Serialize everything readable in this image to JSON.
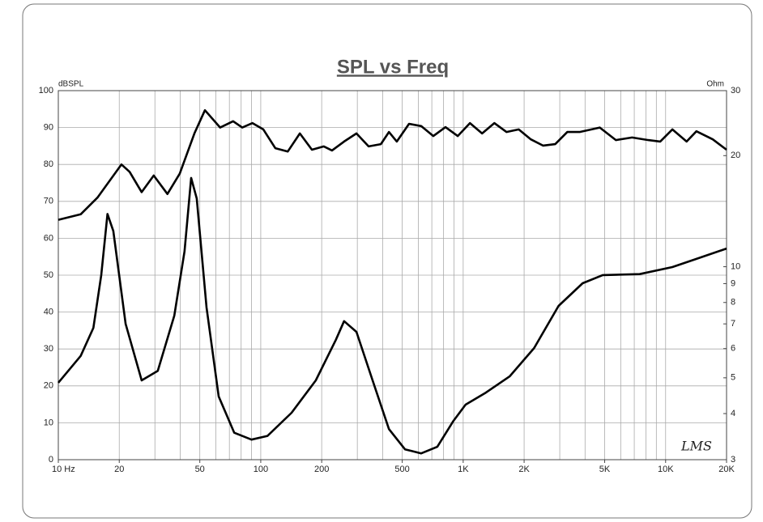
{
  "chart_data": {
    "type": "line",
    "title": "SPL vs Freq",
    "ylabel": "dBSPL",
    "y2label": "Ohm",
    "watermark": "LMS",
    "xscale": "log",
    "y2scale": "log",
    "grid": true,
    "xlim": [
      10,
      20000
    ],
    "ylim": [
      0,
      100
    ],
    "y2lim": [
      3,
      30
    ],
    "xticks": [
      {
        "value": 10,
        "label": "10  Hz"
      },
      20,
      50,
      100,
      200,
      500,
      {
        "value": 1000,
        "label": "1K"
      },
      {
        "value": 2000,
        "label": "2K"
      },
      {
        "value": 5000,
        "label": "5K"
      },
      {
        "value": 10000,
        "label": "10K"
      },
      {
        "value": 20000,
        "label": "20K"
      }
    ],
    "xgrid": [
      10,
      20,
      30,
      40,
      50,
      60,
      70,
      80,
      90,
      100,
      200,
      300,
      400,
      500,
      600,
      700,
      800,
      900,
      1000,
      2000,
      3000,
      4000,
      5000,
      6000,
      7000,
      8000,
      9000,
      10000,
      20000
    ],
    "yticks": [
      0,
      10,
      20,
      30,
      40,
      50,
      60,
      70,
      80,
      90,
      100
    ],
    "y2ticks": [
      3,
      4,
      5,
      6,
      7,
      8,
      9,
      10,
      20,
      30
    ],
    "series": [
      {
        "color": "#000000",
        "x": [
          10,
          12.9,
          15.6,
          20.5,
          22.5,
          25.8,
          29.6,
          34.6,
          39.8,
          47,
          53,
          63,
          73,
          81,
          91,
          103,
          118,
          136,
          156,
          179,
          205,
          225,
          258,
          297,
          341,
          392,
          430,
          470,
          540,
          620,
          712,
          818,
          940,
          1080,
          1240,
          1425,
          1637,
          1880,
          2160,
          2480,
          2850,
          3270,
          3760,
          4730,
          5680,
          6830,
          8210,
          9400,
          10800,
          12700,
          14200,
          17100,
          20000
        ],
        "values": [
          65,
          66.5,
          71,
          80,
          78,
          72.5,
          77,
          72,
          77.5,
          88.4,
          94.7,
          90,
          91.7,
          90,
          91.2,
          89.5,
          84.4,
          83.5,
          88.4,
          84,
          84.9,
          83.8,
          86.2,
          88.4,
          84.9,
          85.5,
          88.8,
          86.2,
          91,
          90.4,
          87.7,
          90.1,
          87.7,
          91.2,
          88.4,
          91.2,
          88.8,
          89.5,
          86.8,
          85.1,
          85.5,
          88.8,
          88.8,
          90,
          86.6,
          87.3,
          86.6,
          86.2,
          89.5,
          86.2,
          89,
          86.8,
          84
        ]
      },
      {
        "color": "#000000",
        "axis": "y2",
        "x": [
          10,
          12.9,
          14.9,
          16.3,
          17.5,
          18.7,
          21.5,
          25.8,
          31,
          37.4,
          42,
          45.3,
          48.3,
          54,
          62,
          74,
          90,
          108,
          142,
          187,
          235,
          258,
          297,
          357,
          430,
          516,
          620,
          745,
          895,
          1028,
          1295,
          1700,
          2240,
          2960,
          3890,
          4890,
          7440,
          10800,
          14200,
          20000
        ],
        "values": [
          4.85,
          5.73,
          6.83,
          9.49,
          13.9,
          12.5,
          7,
          4.92,
          5.22,
          7.37,
          11,
          17.4,
          15.3,
          7.75,
          4.45,
          3.55,
          3.4,
          3.48,
          4.02,
          4.92,
          6.34,
          7.12,
          6.66,
          4.92,
          3.63,
          3.2,
          3.12,
          3.25,
          3.82,
          4.23,
          4.56,
          5.05,
          6.02,
          7.83,
          9.02,
          9.49,
          9.55,
          9.98,
          10.5,
          11.2
        ]
      }
    ]
  }
}
